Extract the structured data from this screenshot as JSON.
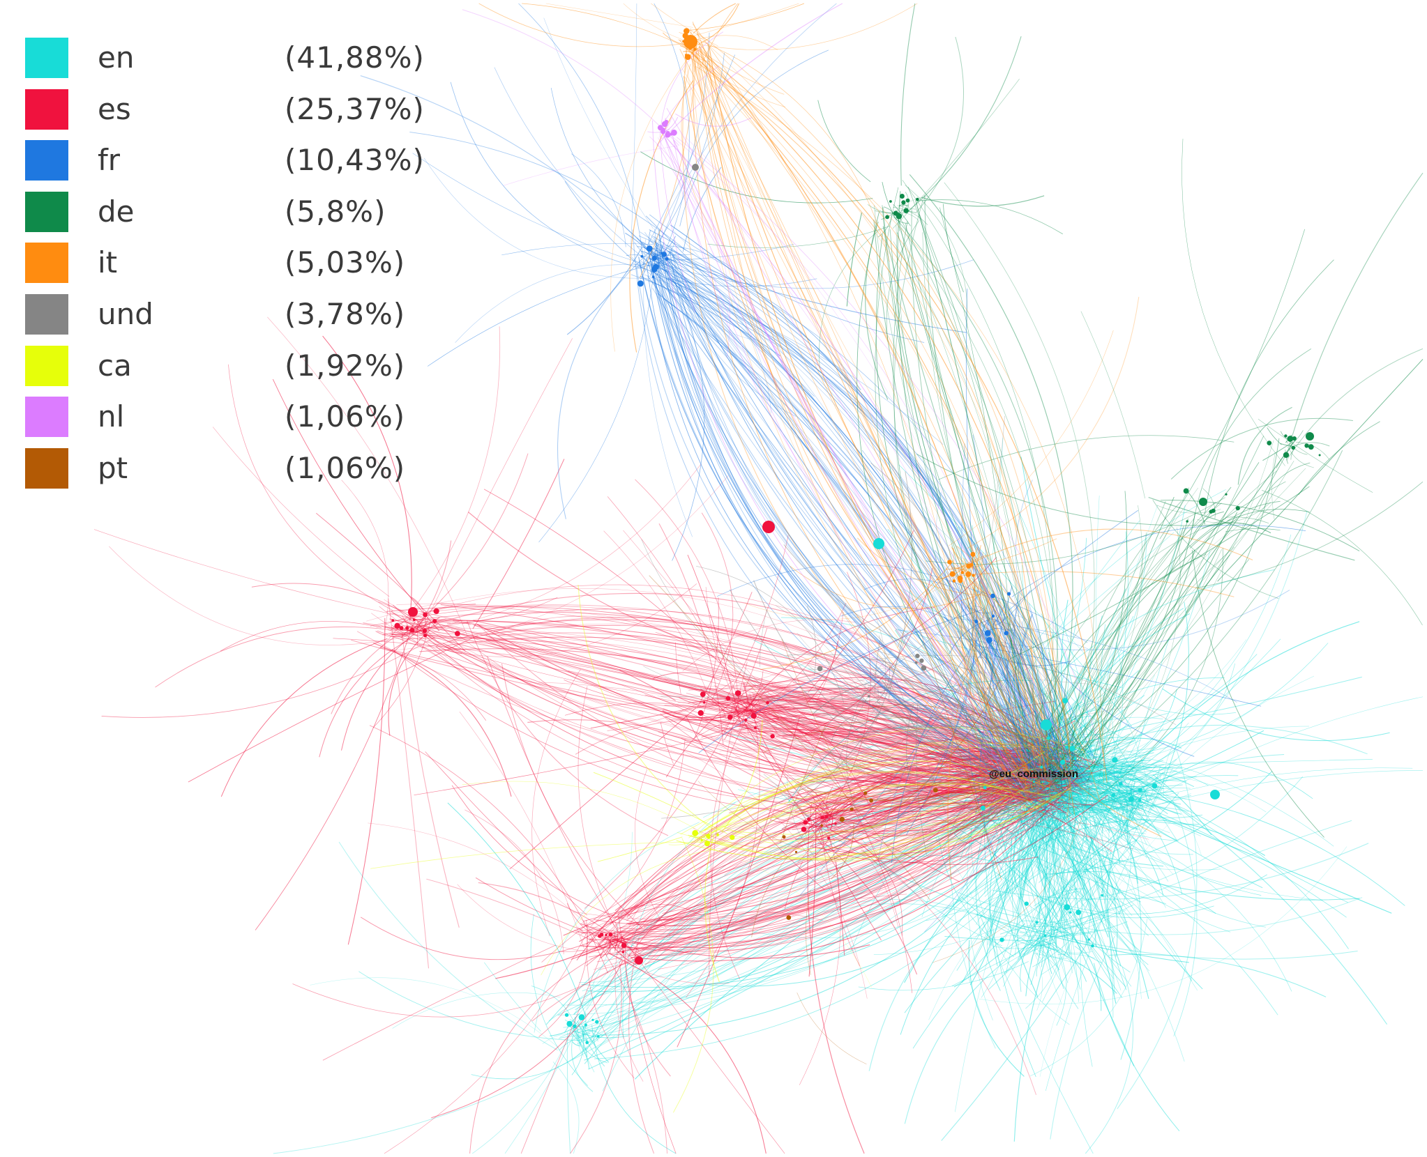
{
  "legend": {
    "items": [
      {
        "code": "en",
        "percent": "(41,88%)",
        "color": "#18dcd7"
      },
      {
        "code": "es",
        "percent": "(25,37%)",
        "color": "#f0123e"
      },
      {
        "code": "fr",
        "percent": "(10,43%)",
        "color": "#1f78e0"
      },
      {
        "code": "de",
        "percent": "(5,8%)",
        "color": "#0f8a4a"
      },
      {
        "code": "it",
        "percent": "(5,03%)",
        "color": "#ff8c10"
      },
      {
        "code": "und",
        "percent": "(3,78%)",
        "color": "#858585"
      },
      {
        "code": "ca",
        "percent": "(1,92%)",
        "color": "#e6ff0a"
      },
      {
        "code": "nl",
        "percent": "(1,06%)",
        "color": "#dc7cff"
      },
      {
        "code": "pt",
        "percent": "(1,06%)",
        "color": "#b35a05"
      }
    ]
  },
  "graph": {
    "hub_label": "@eu_commission",
    "link_share_percent": {
      "en": 41.88,
      "es": 25.37,
      "fr": 10.43,
      "de": 5.8,
      "it": 5.03,
      "und": 3.78,
      "ca": 1.92,
      "nl": 1.06,
      "pt": 1.06
    }
  }
}
